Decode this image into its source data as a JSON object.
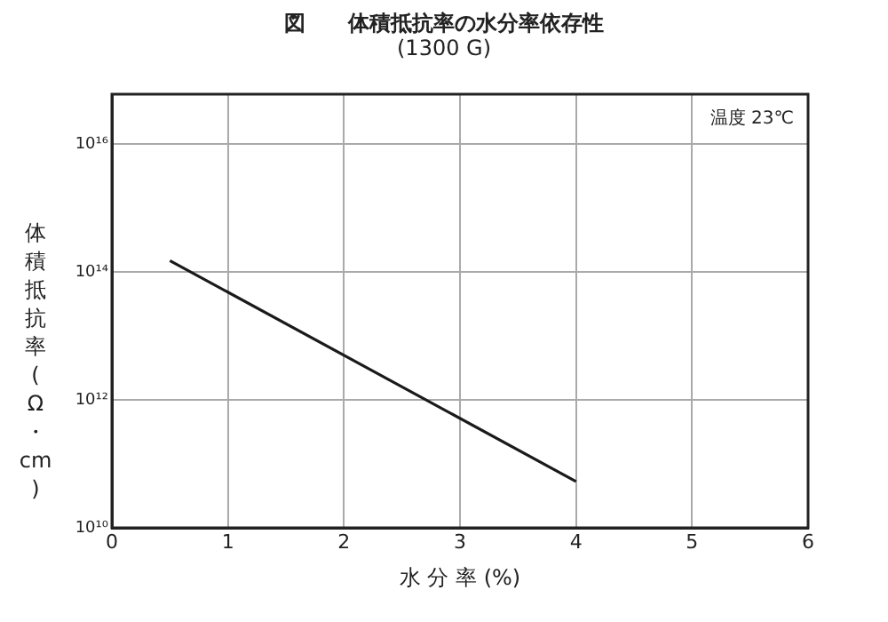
{
  "chart_data": {
    "type": "line",
    "title": "図　　体積抵抗率の水分率依存性",
    "subtitle": "(1300 G)",
    "xlabel": "水 分 率 (%)",
    "ylabel": "体積抵抗率(Ω・cm)",
    "annotations": [
      "温度 23℃"
    ],
    "series": [
      {
        "color": "#1a1a1a",
        "x": [
          0.5,
          4
        ],
        "values": [
          150000000000000.0,
          53000000000.0
        ]
      }
    ],
    "xlim": [
      0,
      6
    ],
    "xticks": [
      0,
      1,
      2,
      3,
      4,
      5,
      6
    ],
    "log": "y",
    "ylim": [
      10000000000.0,
      6e+16
    ],
    "yticks": [
      {
        "value": 10000000000.0,
        "label": "10¹⁰"
      },
      {
        "value": 1000000000000.0,
        "label": "10¹²"
      },
      {
        "value": 100000000000000.0,
        "label": "10¹⁴"
      },
      {
        "value": 1e+16,
        "label": "10¹⁶"
      }
    ],
    "grid": true,
    "legend": false,
    "marker": "none",
    "line_style": "solid"
  }
}
